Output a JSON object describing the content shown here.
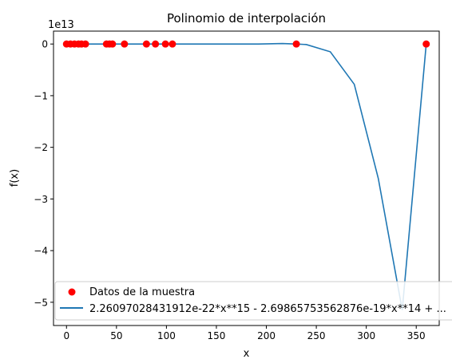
{
  "chart_data": {
    "type": "scatter",
    "title": "Polinomio de interpolación",
    "xlabel": "x",
    "ylabel": "f(x)",
    "y_offset_text": "1e13",
    "xlim": [
      -13,
      373
    ],
    "ylim": [
      -5.45,
      0.25
    ],
    "x_ticks": [
      0,
      50,
      100,
      150,
      200,
      250,
      300,
      350
    ],
    "x_tick_labels": [
      "0",
      "50",
      "100",
      "150",
      "200",
      "250",
      "300",
      "350"
    ],
    "y_ticks": [
      0,
      -1,
      -2,
      -3,
      -4,
      -5
    ],
    "y_tick_labels": [
      "0",
      "−1",
      "−2",
      "−3",
      "−4",
      "−5"
    ],
    "grid": false,
    "legend_position": "lower-left",
    "series": [
      {
        "name": "Datos de la muestra",
        "kind": "scatter",
        "color": "#ff0000",
        "x": [
          0,
          4,
          8,
          12,
          15,
          19,
          40,
          43,
          46,
          58,
          80,
          89,
          99,
          106,
          230,
          360
        ],
        "y": [
          0,
          0,
          0,
          0,
          0,
          0,
          0,
          0,
          0,
          0,
          0,
          0,
          0,
          0,
          0,
          0
        ]
      },
      {
        "name": "2.26097028431912e-22*x**15 - 2.69865753562876e-19*x**14 + ...",
        "kind": "line",
        "color": "#1f77b4",
        "x": [
          0,
          24,
          48,
          72,
          96,
          120,
          144,
          168,
          192,
          216,
          230,
          240,
          264,
          288,
          312,
          336,
          360
        ],
        "y": [
          0,
          0,
          0,
          0,
          0,
          0,
          0,
          0,
          0,
          0.01,
          0,
          -0.01,
          -0.15,
          -0.78,
          -2.6,
          -5.15,
          0
        ]
      }
    ]
  }
}
